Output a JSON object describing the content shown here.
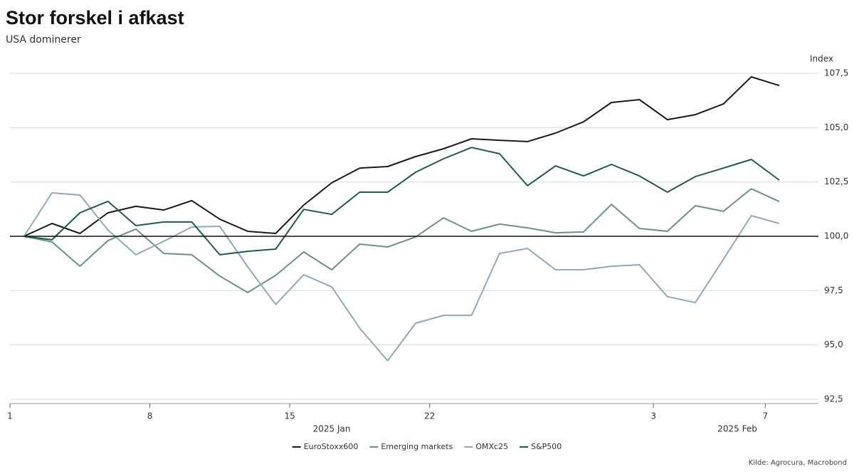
{
  "chart_data": {
    "type": "line",
    "title": "Stor forskel i afkast",
    "subtitle": "USA dominerer",
    "y_label": "Index",
    "source": "Kilde: Agrocura, Macrobond",
    "x": [
      "2025-01-01",
      "2025-01-02",
      "2025-01-03",
      "2025-01-06",
      "2025-01-07",
      "2025-01-08",
      "2025-01-09",
      "2025-01-10",
      "2025-01-13",
      "2025-01-14",
      "2025-01-15",
      "2025-01-16",
      "2025-01-17",
      "2025-01-20",
      "2025-01-21",
      "2025-01-22",
      "2025-01-23",
      "2025-01-24",
      "2025-01-27",
      "2025-01-28",
      "2025-01-29",
      "2025-01-30",
      "2025-01-31",
      "2025-02-03",
      "2025-02-04",
      "2025-02-05",
      "2025-02-06",
      "2025-02-07"
    ],
    "x_scale": "business-days",
    "xlim": [
      "2025-01-01",
      "2025-02-11"
    ],
    "xticks": [
      {
        "value": "2025-01-01",
        "label": "1"
      },
      {
        "value": "2025-01-08",
        "label": "8"
      },
      {
        "value": "2025-01-15",
        "label": "15"
      },
      {
        "value": "2025-01-22",
        "label": "22"
      },
      {
        "value": "2025-02-03",
        "label": "3"
      },
      {
        "value": "2025-02-07",
        "label": "7"
      }
    ],
    "x_periods": [
      {
        "label": "2025 Jan",
        "start": "2025-01-01"
      },
      {
        "label": "2025 Feb",
        "start": "2025-02-01"
      }
    ],
    "ylim": [
      92.3,
      107.7
    ],
    "yticks": [
      {
        "value": 92.5,
        "label": "92,5"
      },
      {
        "value": 95,
        "label": "95,0"
      },
      {
        "value": 97.5,
        "label": "97,5"
      },
      {
        "value": 100,
        "label": "100,0"
      },
      {
        "value": 102.5,
        "label": "102,5"
      },
      {
        "value": 105,
        "label": "105,0"
      },
      {
        "value": 107.5,
        "label": "107,5"
      }
    ],
    "baseline": 100,
    "grid": true,
    "legend": "bottom",
    "series": [
      {
        "name": "EuroStoxx600",
        "color": "#1a1a1a",
        "values": [
          100.0,
          100.59,
          100.13,
          101.08,
          101.38,
          101.21,
          101.64,
          100.79,
          100.23,
          100.13,
          101.44,
          102.46,
          103.14,
          103.21,
          103.67,
          104.03,
          104.49,
          104.42,
          104.36,
          104.75,
          105.27,
          106.16,
          106.29,
          105.37,
          105.6,
          106.09,
          107.34,
          106.94
        ]
      },
      {
        "name": "Emerging markets",
        "color": "#6b9382",
        "values": [
          100.0,
          99.74,
          98.62,
          99.8,
          100.33,
          99.21,
          99.15,
          98.17,
          97.41,
          98.2,
          99.28,
          98.46,
          99.64,
          99.51,
          99.97,
          100.85,
          100.23,
          100.56,
          100.39,
          100.16,
          100.2,
          101.47,
          100.36,
          100.23,
          101.41,
          101.15,
          102.19,
          101.6
        ]
      },
      {
        "name": "OMXc25",
        "color": "#8fa9ba",
        "values": [
          100.0,
          102.0,
          101.9,
          100.29,
          99.15,
          99.77,
          100.43,
          100.46,
          98.59,
          96.86,
          98.23,
          97.67,
          95.77,
          94.27,
          96.0,
          96.36,
          96.36,
          99.21,
          99.44,
          98.46,
          98.46,
          98.62,
          98.69,
          97.22,
          96.95,
          98.94,
          100.95,
          100.59
        ]
      },
      {
        "name": "S&P500",
        "color": "#1f5c43",
        "values": [
          100.0,
          99.84,
          101.08,
          101.61,
          100.49,
          100.66,
          100.66,
          99.15,
          99.31,
          99.41,
          101.24,
          101.01,
          102.03,
          102.03,
          102.95,
          103.57,
          104.09,
          103.8,
          102.33,
          103.24,
          102.78,
          103.31,
          102.78,
          102.03,
          102.75,
          103.14,
          103.54,
          102.59
        ]
      }
    ]
  }
}
